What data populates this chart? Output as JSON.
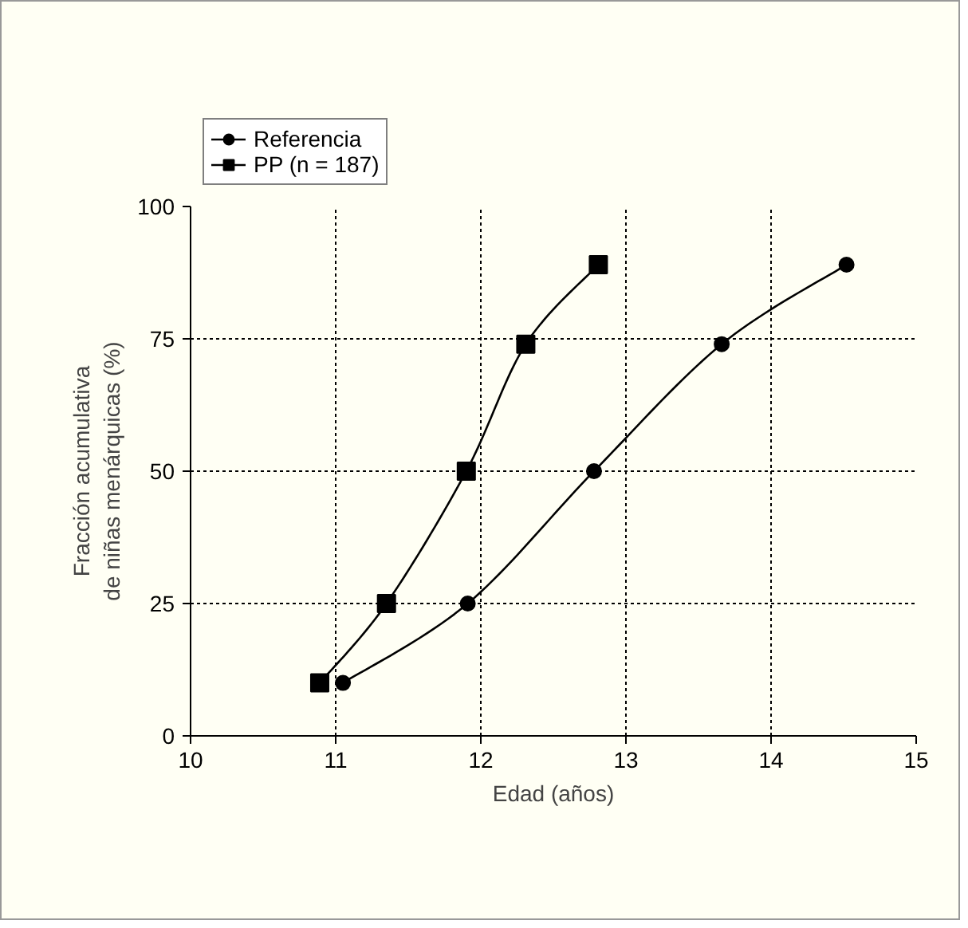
{
  "chart_data": {
    "type": "line",
    "xlabel": "Edad (años)",
    "ylabel": "Fracción acumulativa\nde niñas menárquicas (%)",
    "xlim": [
      10,
      15
    ],
    "xticks": [
      10,
      11,
      12,
      13,
      14,
      15
    ],
    "ylim": [
      0,
      100
    ],
    "yticks": [
      0,
      25,
      50,
      75,
      100
    ],
    "grid": true,
    "legend": "top left",
    "line_style": "solid",
    "series": [
      {
        "name": "Referencia",
        "color": "#000000",
        "marker": "circle",
        "x": [
          11.05,
          11.91,
          12.78,
          13.66,
          14.52
        ],
        "values": [
          10,
          25,
          50,
          74,
          89
        ]
      },
      {
        "name": "PP (n = 187)",
        "color": "#000000",
        "marker": "square",
        "x": [
          10.89,
          11.35,
          11.9,
          12.31,
          12.81
        ],
        "values": [
          10,
          25,
          50,
          74,
          89
        ]
      }
    ]
  }
}
